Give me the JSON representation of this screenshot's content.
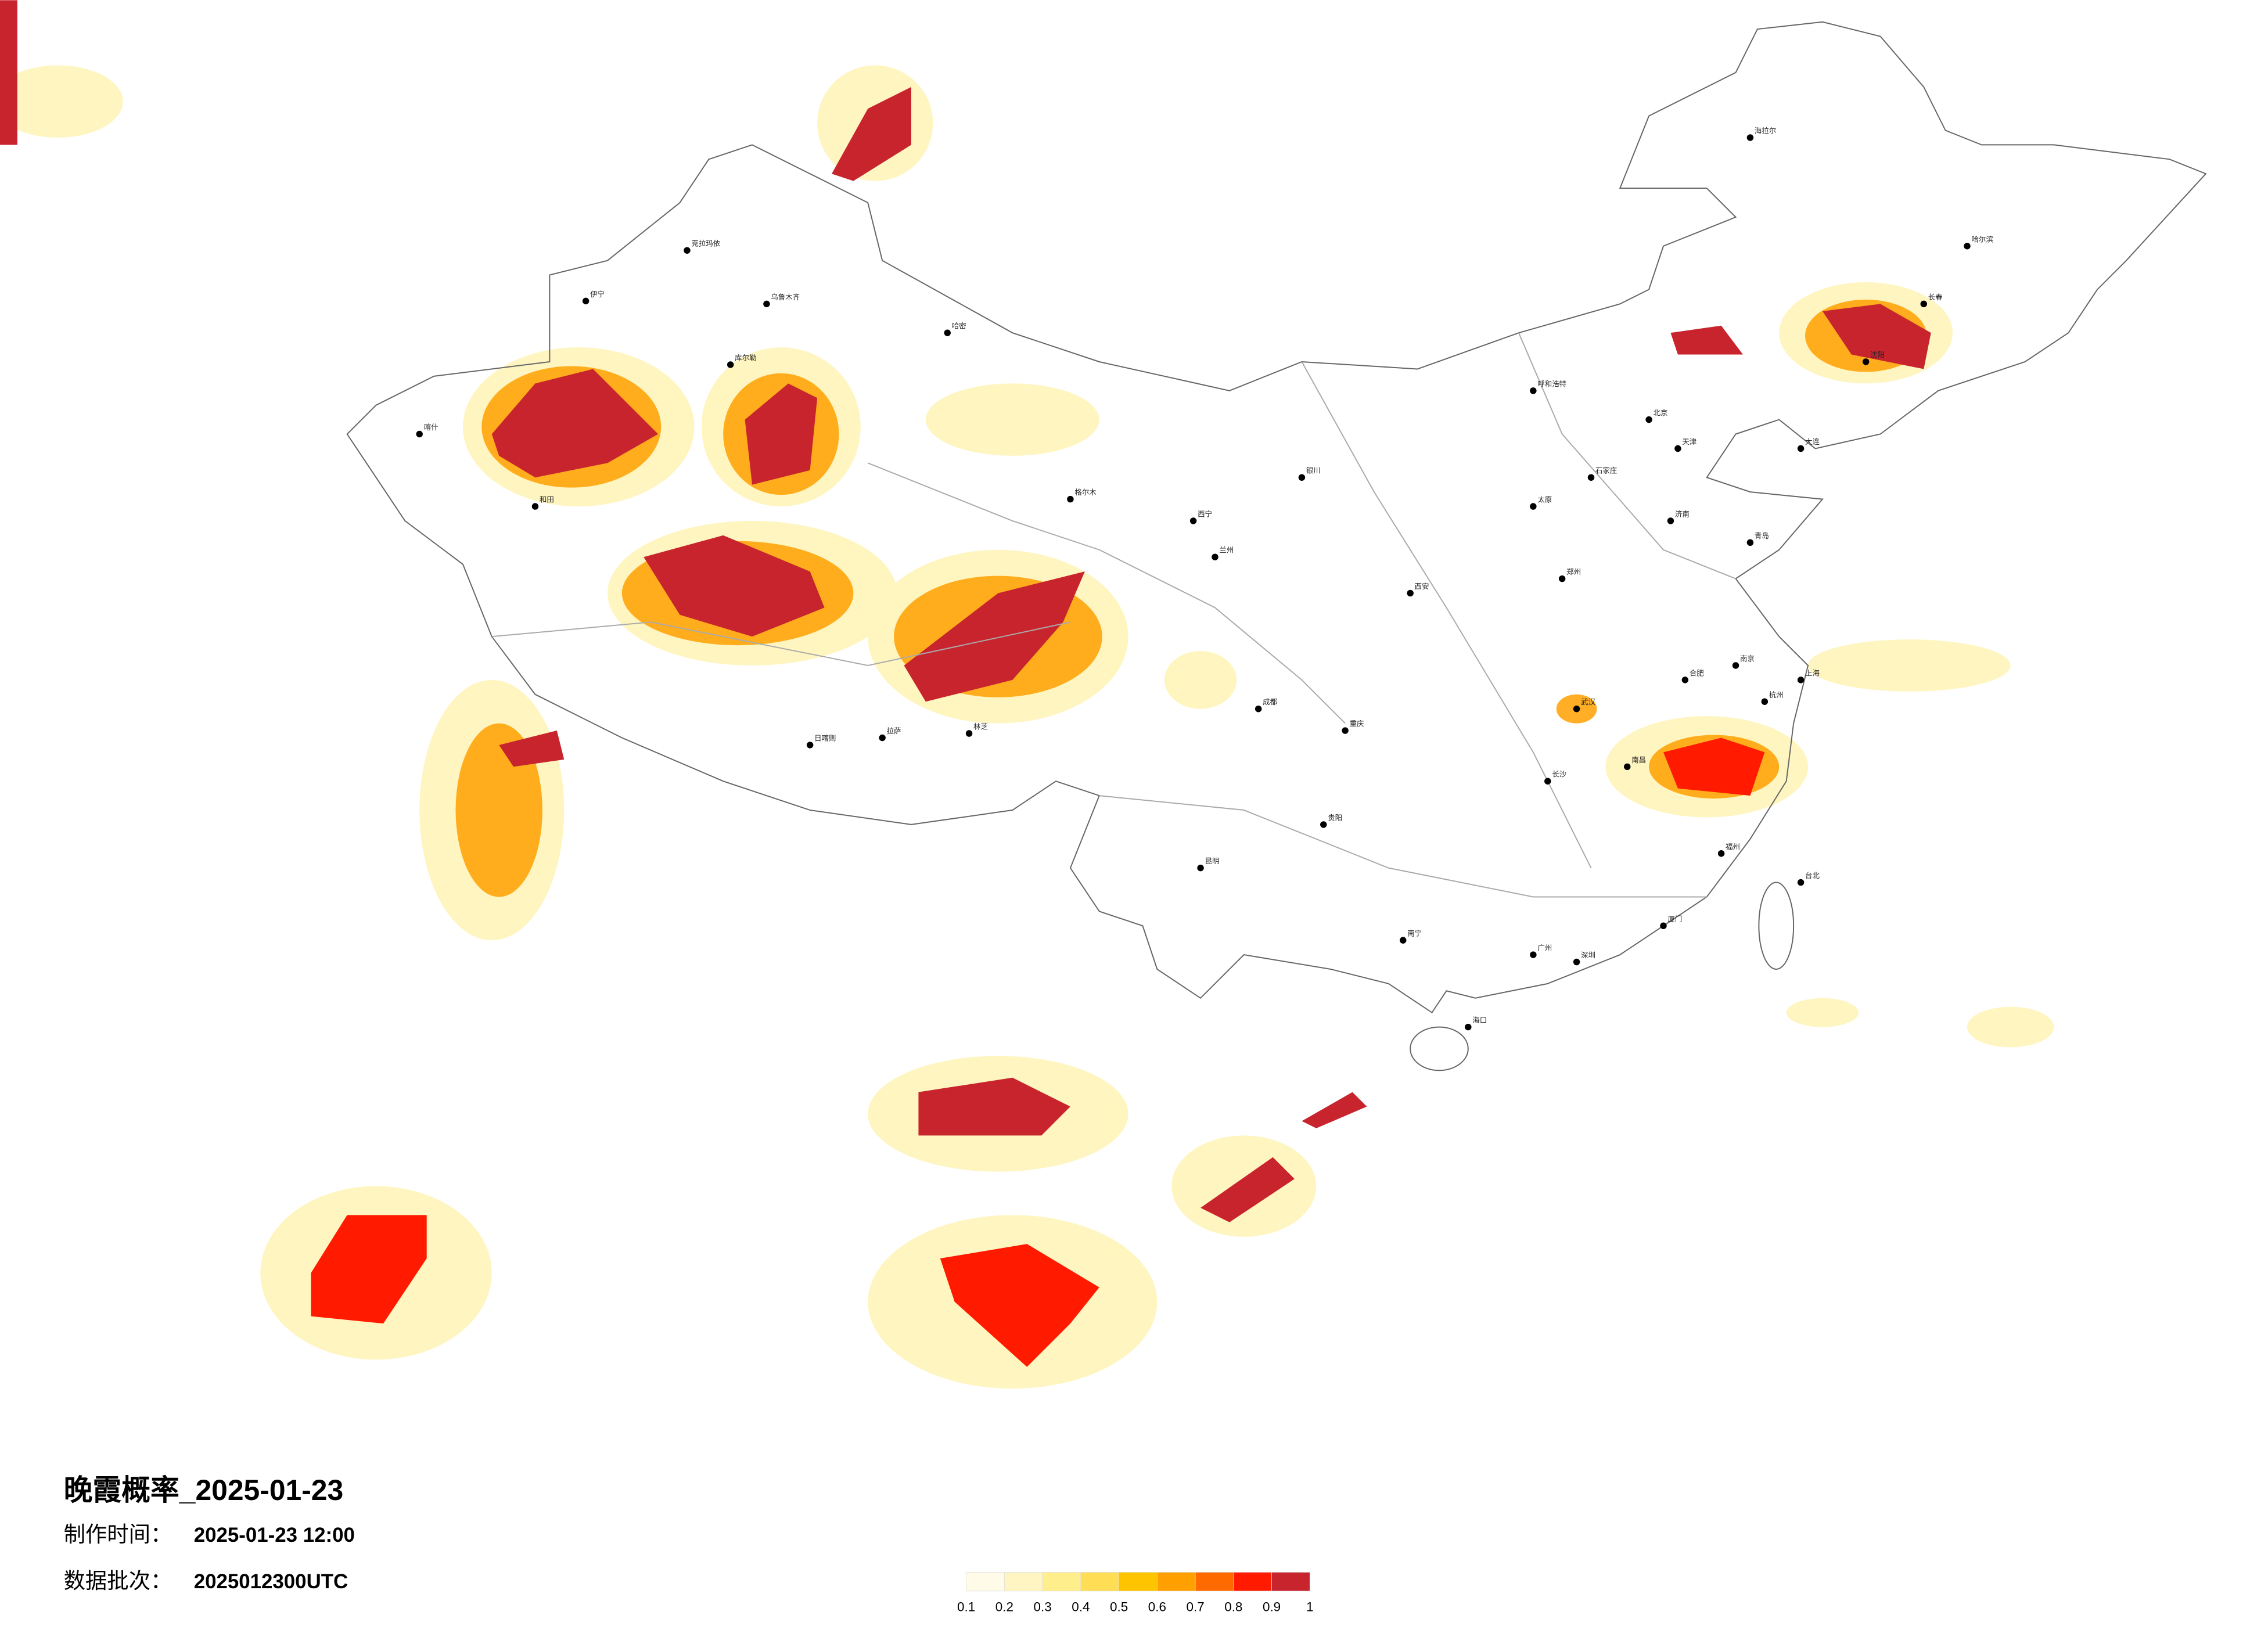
{
  "title": "晚霞概率_2025-01-23",
  "meta": [
    {
      "label": "制作时间：",
      "value": "2025-01-23 12:00"
    },
    {
      "label": "数据批次：",
      "value": "2025012300UTC"
    }
  ],
  "legend": {
    "colors": [
      "#fffbe8",
      "#fff5c2",
      "#ffee8c",
      "#ffdd55",
      "#ffc400",
      "#ffa000",
      "#ff6a00",
      "#ff1a00",
      "#c8242e"
    ],
    "ticks": [
      0.1,
      0.2,
      0.3,
      0.4,
      0.5,
      0.6,
      0.7,
      0.8,
      0.9,
      1
    ]
  },
  "cities": [
    "北京",
    "天津",
    "上海",
    "广州",
    "深圳",
    "重庆",
    "成都",
    "武汉",
    "西安",
    "兰州",
    "乌鲁木齐",
    "拉萨",
    "哈尔滨",
    "长春",
    "沈阳",
    "呼和浩特",
    "银川",
    "西宁",
    "昆明",
    "贵阳",
    "南宁",
    "海口",
    "福州",
    "南昌",
    "长沙",
    "杭州",
    "南京",
    "济南",
    "郑州",
    "太原",
    "石家庄",
    "合肥",
    "台北",
    "喀什",
    "伊宁",
    "克拉玛依",
    "库尔勒",
    "和田",
    "哈密",
    "格尔木",
    "日喀则",
    "林芝",
    "海拉尔",
    "大连",
    "青岛",
    "厦门"
  ]
}
